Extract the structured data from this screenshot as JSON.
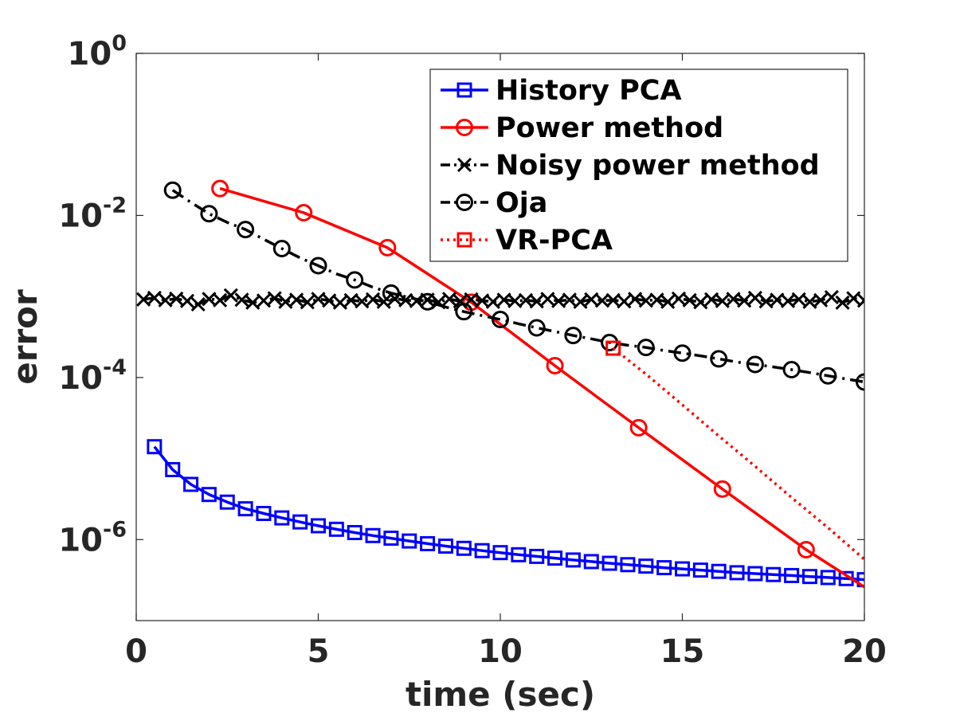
{
  "chart_data": {
    "type": "line",
    "title": "",
    "xlabel": "time (sec)",
    "ylabel": "error",
    "xlim": [
      0,
      20
    ],
    "ylim_log10": [
      -7,
      0
    ],
    "yscale": "log",
    "xticks": [
      0,
      5,
      10,
      15,
      20
    ],
    "yticks_exp": [
      -6,
      -4,
      -2,
      0
    ],
    "ytick_base": "10",
    "legend_position": "top-right",
    "grid": false,
    "series": [
      {
        "name": "History PCA",
        "color": "#0000ff",
        "line": "solid",
        "marker": "square",
        "x": [
          0.5,
          1.0,
          1.5,
          2.0,
          2.5,
          3.0,
          3.5,
          4.0,
          4.5,
          5.0,
          5.5,
          6.0,
          6.5,
          7.0,
          7.5,
          8.0,
          8.5,
          9.0,
          9.5,
          10.0,
          10.5,
          11.0,
          11.5,
          12.0,
          12.5,
          13.0,
          13.5,
          14.0,
          14.5,
          15.0,
          15.5,
          16.0,
          16.5,
          17.0,
          17.5,
          18.0,
          18.5,
          19.0,
          19.5,
          20.0
        ],
        "y": [
          1.4e-05,
          7.3e-06,
          4.8e-06,
          3.6e-06,
          2.9e-06,
          2.4e-06,
          2.1e-06,
          1.85e-06,
          1.65e-06,
          1.48e-06,
          1.34e-06,
          1.22e-06,
          1.12e-06,
          1.04e-06,
          9.6e-07,
          8.9e-07,
          8.3e-07,
          7.8e-07,
          7.3e-07,
          6.9e-07,
          6.5e-07,
          6.2e-07,
          5.9e-07,
          5.6e-07,
          5.35e-07,
          5.1e-07,
          4.9e-07,
          4.7e-07,
          4.5e-07,
          4.35e-07,
          4.2e-07,
          4.05e-07,
          3.9e-07,
          3.8e-07,
          3.7e-07,
          3.6e-07,
          3.5e-07,
          3.4e-07,
          3.3e-07,
          3.2e-07
        ],
        "marker_every": 1
      },
      {
        "name": "Power method",
        "color": "#ff0000",
        "line": "solid",
        "marker": "circle",
        "x": [
          2.3,
          4.6,
          6.9,
          9.2,
          11.5,
          13.8,
          16.1,
          18.4,
          20.0
        ],
        "y": [
          0.0215,
          0.0108,
          0.004,
          0.00085,
          0.00014,
          2.4e-05,
          4.2e-06,
          7.5e-07,
          2.6e-07
        ],
        "marker_every": 1,
        "marker_count": 8
      },
      {
        "name": "Noisy power method",
        "color": "#000000",
        "line": "dashdot",
        "marker": "x",
        "x": [
          0.2,
          0.5,
          0.8,
          1.1,
          1.4,
          1.7,
          2.0,
          2.3,
          2.6,
          2.9,
          3.2,
          3.5,
          3.8,
          4.1,
          4.4,
          4.7,
          5.0,
          5.3,
          5.6,
          5.9,
          6.2,
          6.5,
          6.8,
          7.1,
          7.4,
          7.7,
          8.0,
          8.3,
          8.6,
          8.9,
          9.2,
          9.5,
          9.8,
          10.1,
          10.4,
          10.7,
          11.0,
          11.3,
          11.6,
          11.9,
          12.2,
          12.5,
          12.8,
          13.1,
          13.4,
          13.7,
          14.0,
          14.3,
          14.6,
          14.9,
          15.2,
          15.5,
          15.8,
          16.1,
          16.4,
          16.7,
          17.0,
          17.3,
          17.6,
          17.9,
          18.2,
          18.5,
          18.8,
          19.1,
          19.4,
          19.7,
          20.0
        ],
        "y": [
          0.00092,
          0.00096,
          0.0009,
          0.00094,
          0.00088,
          0.0008,
          0.00093,
          0.0009,
          0.00103,
          0.00091,
          0.00084,
          0.00089,
          0.00095,
          0.00086,
          0.00091,
          0.00085,
          0.00093,
          0.00089,
          0.00084,
          0.0009,
          0.00087,
          0.00092,
          0.00086,
          0.00094,
          0.0009,
          0.00088,
          0.00091,
          0.00085,
          0.00093,
          0.00087,
          0.00092,
          0.00089,
          0.00086,
          0.00091,
          0.00088,
          0.0009,
          0.00087,
          0.00093,
          0.00088,
          0.00091,
          0.00086,
          0.00092,
          0.00089,
          0.0009,
          0.00087,
          0.00093,
          0.00089,
          0.00091,
          0.00086,
          0.00094,
          0.0009,
          0.00085,
          0.00092,
          0.00088,
          0.00093,
          0.00089,
          0.00096,
          0.00087,
          0.00091,
          0.00088,
          0.00092,
          0.00086,
          0.0009,
          0.00098,
          0.00084,
          0.00095,
          0.00089
        ],
        "marker_every": 1
      },
      {
        "name": "Oja",
        "color": "#000000",
        "line": "dashdot",
        "marker": "circle",
        "x": [
          1.0,
          1.5,
          2.0,
          2.5,
          3.0,
          3.5,
          4.0,
          4.5,
          5.0,
          5.5,
          6.0,
          6.5,
          7.0,
          7.5,
          8.0,
          8.5,
          9.0,
          9.5,
          10.0,
          10.5,
          11.0,
          11.5,
          12.0,
          12.5,
          13.0,
          13.5,
          14.0,
          14.5,
          15.0,
          15.5,
          16.0,
          16.5,
          17.0,
          17.5,
          18.0,
          18.5,
          19.0,
          19.5,
          20.0
        ],
        "y": [
          0.0205,
          0.0145,
          0.0105,
          0.0082,
          0.0067,
          0.0051,
          0.0039,
          0.003,
          0.0024,
          0.0019,
          0.0016,
          0.0013,
          0.0011,
          0.00097,
          0.00086,
          0.00074,
          0.00065,
          0.00058,
          0.00052,
          0.00046,
          0.00041,
          0.00037,
          0.00033,
          0.0003,
          0.00027,
          0.00025,
          0.000235,
          0.000215,
          0.0002,
          0.000185,
          0.00017,
          0.000155,
          0.000145,
          0.000135,
          0.000125,
          0.000115,
          0.000105,
          9.6e-05,
          8.8e-05
        ],
        "marker_every": 2
      },
      {
        "name": "VR-PCA",
        "color": "#ff0000",
        "line": "dotted",
        "marker": "square",
        "x": [
          13.1,
          14.0,
          15.0,
          16.0,
          17.0,
          18.0,
          19.0,
          20.0
        ],
        "y": [
          0.00023,
          0.00011,
          4.6e-05,
          1.9e-05,
          8e-06,
          3.3e-06,
          1.4e-06,
          5.7e-07
        ],
        "marker_count": 1
      }
    ]
  }
}
